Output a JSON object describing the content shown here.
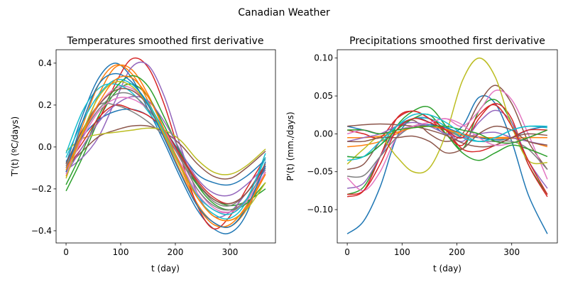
{
  "figure_title": "Canadian Weather",
  "chart_data": [
    {
      "type": "line",
      "title": "Temperatures smoothed first derivative",
      "xlabel": "t (day)",
      "ylabel": "T'(t) (ºC/days)",
      "xlim": [
        -18.25,
        383.25
      ],
      "ylim": [
        -0.458,
        0.464
      ],
      "xticks": [
        0,
        100,
        200,
        300
      ],
      "xtick_labels": [
        "0",
        "100",
        "200",
        "300"
      ],
      "yticks": [
        0.4,
        0.2,
        0.0,
        -0.2,
        -0.4
      ],
      "ytick_labels": [
        "0.4",
        "0.2",
        "0.0",
        "−0.2",
        "−0.4"
      ],
      "grid": false,
      "x": [
        0,
        30,
        60,
        90,
        120,
        150,
        180,
        210,
        240,
        270,
        300,
        330,
        365
      ],
      "series": [
        {
          "color": "#1f77b4",
          "values": [
            -0.08,
            0.15,
            0.33,
            0.4,
            0.33,
            0.18,
            0.02,
            -0.15,
            -0.3,
            -0.39,
            -0.41,
            -0.32,
            -0.07
          ]
        },
        {
          "color": "#ff7f0e",
          "values": [
            -0.14,
            0.06,
            0.25,
            0.38,
            0.37,
            0.25,
            0.08,
            -0.1,
            -0.27,
            -0.36,
            -0.38,
            -0.3,
            -0.12
          ]
        },
        {
          "color": "#2ca02c",
          "values": [
            -0.21,
            -0.05,
            0.13,
            0.26,
            0.3,
            0.24,
            0.1,
            -0.06,
            -0.18,
            -0.25,
            -0.28,
            -0.26,
            -0.2
          ]
        },
        {
          "color": "#d62728",
          "values": [
            -0.1,
            0.0,
            0.13,
            0.3,
            0.42,
            0.38,
            0.2,
            -0.05,
            -0.28,
            -0.39,
            -0.33,
            -0.2,
            -0.05
          ]
        },
        {
          "color": "#9467bd",
          "values": [
            -0.11,
            -0.05,
            0.05,
            0.22,
            0.38,
            0.39,
            0.24,
            0.0,
            -0.22,
            -0.33,
            -0.31,
            -0.22,
            -0.11
          ]
        },
        {
          "color": "#8c564b",
          "values": [
            -0.1,
            -0.02,
            0.05,
            0.08,
            0.1,
            0.1,
            0.07,
            0.01,
            -0.08,
            -0.14,
            -0.15,
            -0.1,
            -0.02
          ]
        },
        {
          "color": "#e377c2",
          "values": [
            -0.12,
            0.05,
            0.2,
            0.28,
            0.28,
            0.2,
            0.06,
            -0.08,
            -0.22,
            -0.3,
            -0.31,
            -0.25,
            -0.1
          ]
        },
        {
          "color": "#7f7f7f",
          "values": [
            -0.1,
            0.08,
            0.2,
            0.2,
            0.17,
            0.12,
            0.05,
            -0.05,
            -0.17,
            -0.26,
            -0.28,
            -0.22,
            -0.09
          ]
        },
        {
          "color": "#bcbd22",
          "values": [
            -0.02,
            0.04,
            0.06,
            0.07,
            0.08,
            0.09,
            0.08,
            0.03,
            -0.06,
            -0.12,
            -0.13,
            -0.09,
            -0.01
          ]
        },
        {
          "color": "#17becf",
          "values": [
            -0.03,
            0.17,
            0.28,
            0.3,
            0.26,
            0.17,
            0.05,
            -0.1,
            -0.24,
            -0.32,
            -0.34,
            -0.26,
            -0.03
          ]
        },
        {
          "color": "#1f77b4",
          "values": [
            -0.07,
            0.05,
            0.13,
            0.17,
            0.18,
            0.15,
            0.08,
            -0.03,
            -0.13,
            -0.17,
            -0.18,
            -0.14,
            -0.06
          ]
        },
        {
          "color": "#ff7f0e",
          "values": [
            -0.12,
            0.1,
            0.3,
            0.39,
            0.35,
            0.22,
            0.05,
            -0.12,
            -0.28,
            -0.37,
            -0.37,
            -0.28,
            -0.12
          ]
        },
        {
          "color": "#2ca02c",
          "values": [
            -0.18,
            -0.02,
            0.15,
            0.28,
            0.34,
            0.29,
            0.14,
            -0.03,
            -0.18,
            -0.27,
            -0.3,
            -0.27,
            -0.17
          ]
        },
        {
          "color": "#d62728",
          "values": [
            -0.09,
            0.02,
            0.14,
            0.2,
            0.18,
            0.15,
            0.08,
            -0.04,
            -0.16,
            -0.24,
            -0.27,
            -0.22,
            -0.09
          ]
        },
        {
          "color": "#9467bd",
          "values": [
            -0.13,
            0.0,
            0.12,
            0.2,
            0.24,
            0.22,
            0.12,
            -0.02,
            -0.15,
            -0.22,
            -0.23,
            -0.18,
            -0.09
          ]
        },
        {
          "color": "#8c564b",
          "values": [
            -0.08,
            0.08,
            0.2,
            0.27,
            0.27,
            0.2,
            0.08,
            -0.05,
            -0.17,
            -0.25,
            -0.27,
            -0.22,
            -0.08
          ]
        },
        {
          "color": "#e377c2",
          "values": [
            -0.13,
            0.04,
            0.17,
            0.23,
            0.23,
            0.18,
            0.08,
            -0.06,
            -0.2,
            -0.29,
            -0.31,
            -0.26,
            -0.12
          ]
        },
        {
          "color": "#7f7f7f",
          "values": [
            -0.09,
            0.06,
            0.18,
            0.25,
            0.25,
            0.18,
            0.07,
            -0.06,
            -0.2,
            -0.28,
            -0.3,
            -0.25,
            -0.1
          ]
        },
        {
          "color": "#bcbd22",
          "values": [
            -0.15,
            0.07,
            0.24,
            0.31,
            0.29,
            0.2,
            0.06,
            -0.1,
            -0.24,
            -0.33,
            -0.35,
            -0.3,
            -0.17
          ]
        },
        {
          "color": "#17becf",
          "values": [
            -0.05,
            0.12,
            0.25,
            0.32,
            0.3,
            0.21,
            0.07,
            -0.09,
            -0.23,
            -0.3,
            -0.32,
            -0.25,
            -0.05
          ]
        },
        {
          "color": "#1f77b4",
          "values": [
            -0.12,
            0.12,
            0.3,
            0.35,
            0.31,
            0.2,
            0.04,
            -0.13,
            -0.28,
            -0.36,
            -0.38,
            -0.29,
            -0.09
          ]
        },
        {
          "color": "#ff7f0e",
          "values": [
            -0.11,
            0.06,
            0.21,
            0.32,
            0.33,
            0.24,
            0.08,
            -0.09,
            -0.24,
            -0.33,
            -0.35,
            -0.29,
            -0.13
          ]
        }
      ]
    },
    {
      "type": "line",
      "title": "Precipitations smoothed first derivative",
      "xlabel": "t (day)",
      "ylabel": "P'(t) (mm./days)",
      "xlim": [
        -18.25,
        383.25
      ],
      "ylim": [
        -0.144,
        0.111
      ],
      "xticks": [
        0,
        100,
        200,
        300
      ],
      "xtick_labels": [
        "0",
        "100",
        "200",
        "300"
      ],
      "yticks": [
        0.1,
        0.05,
        0.0,
        -0.05,
        -0.1
      ],
      "ytick_labels": [
        "0.10",
        "0.05",
        "0.00",
        "−0.05",
        "−0.10"
      ],
      "grid": false,
      "x": [
        0,
        30,
        60,
        90,
        120,
        150,
        180,
        210,
        240,
        270,
        300,
        330,
        365
      ],
      "series": [
        {
          "color": "#1f77b4",
          "values": [
            -0.132,
            -0.115,
            -0.07,
            -0.005,
            0.02,
            0.015,
            0.0,
            0.01,
            0.048,
            0.04,
            -0.01,
            -0.08,
            -0.132
          ]
        },
        {
          "color": "#ff7f0e",
          "values": [
            -0.017,
            -0.015,
            -0.01,
            0.0,
            0.01,
            0.01,
            0.005,
            -0.002,
            -0.005,
            -0.005,
            -0.005,
            -0.01,
            -0.017
          ]
        },
        {
          "color": "#2ca02c",
          "values": [
            -0.08,
            -0.07,
            -0.03,
            0.01,
            0.03,
            0.035,
            0.01,
            -0.02,
            0.03,
            0.045,
            0.015,
            -0.04,
            -0.08
          ]
        },
        {
          "color": "#d62728",
          "values": [
            -0.083,
            -0.075,
            -0.03,
            0.02,
            0.03,
            0.02,
            0.0,
            -0.015,
            0.02,
            0.04,
            0.02,
            -0.04,
            -0.083
          ]
        },
        {
          "color": "#9467bd",
          "values": [
            -0.072,
            -0.065,
            -0.03,
            0.005,
            0.02,
            0.02,
            0.005,
            -0.01,
            0.015,
            0.031,
            0.015,
            -0.035,
            -0.072
          ]
        },
        {
          "color": "#8c564b",
          "values": [
            -0.047,
            -0.04,
            -0.01,
            0.01,
            0.018,
            0.0,
            -0.01,
            0.0,
            0.04,
            0.064,
            0.04,
            -0.01,
            -0.047
          ]
        },
        {
          "color": "#e377c2",
          "values": [
            -0.058,
            -0.075,
            -0.05,
            -0.005,
            0.01,
            0.015,
            0.02,
            0.01,
            0.03,
            0.057,
            0.045,
            0.0,
            -0.06
          ]
        },
        {
          "color": "#7f7f7f",
          "values": [
            -0.056,
            -0.055,
            -0.03,
            -0.005,
            0.01,
            0.01,
            0.005,
            -0.005,
            -0.01,
            -0.01,
            -0.01,
            -0.02,
            -0.047
          ]
        },
        {
          "color": "#bcbd22",
          "values": [
            -0.04,
            -0.02,
            -0.005,
            -0.03,
            -0.05,
            -0.045,
            0.0,
            0.07,
            0.1,
            0.075,
            0.01,
            -0.035,
            -0.038
          ]
        },
        {
          "color": "#17becf",
          "values": [
            -0.03,
            -0.03,
            -0.015,
            0.01,
            0.02,
            0.02,
            0.01,
            -0.005,
            -0.01,
            -0.005,
            0.005,
            0.01,
            0.008
          ]
        },
        {
          "color": "#1f77b4",
          "values": [
            0.01,
            0.005,
            0.0,
            0.005,
            0.01,
            0.012,
            0.008,
            0.0,
            -0.005,
            -0.008,
            -0.005,
            0.005,
            0.01
          ]
        },
        {
          "color": "#ff7f0e",
          "values": [
            -0.005,
            -0.005,
            -0.003,
            0.002,
            0.008,
            0.01,
            0.006,
            0.0,
            -0.004,
            -0.006,
            -0.006,
            -0.005,
            -0.005
          ]
        },
        {
          "color": "#2ca02c",
          "values": [
            -0.03,
            -0.03,
            -0.015,
            0.005,
            0.02,
            0.025,
            0.0,
            -0.025,
            -0.035,
            -0.025,
            -0.015,
            -0.02,
            -0.03
          ]
        },
        {
          "color": "#d62728",
          "values": [
            0.005,
            0.0,
            -0.005,
            0.02,
            0.03,
            0.02,
            0.005,
            -0.02,
            -0.023,
            -0.015,
            -0.005,
            0.005,
            0.005
          ]
        },
        {
          "color": "#9467bd",
          "values": [
            -0.01,
            -0.005,
            0.0,
            0.01,
            0.015,
            0.01,
            0.0,
            -0.005,
            0.0,
            0.002,
            -0.005,
            -0.01,
            -0.015
          ]
        },
        {
          "color": "#8c564b",
          "values": [
            0.01,
            0.012,
            0.013,
            0.012,
            0.01,
            0.005,
            -0.002,
            -0.012,
            -0.017,
            -0.015,
            -0.005,
            0.0,
            -0.002
          ]
        },
        {
          "color": "#e377c2",
          "values": [
            0.0,
            0.005,
            0.0,
            0.005,
            0.01,
            0.015,
            0.02,
            0.012,
            -0.005,
            -0.015,
            -0.012,
            -0.005,
            0.005
          ]
        },
        {
          "color": "#8c564b",
          "values": [
            -0.01,
            -0.01,
            -0.005,
            -0.005,
            -0.003,
            -0.01,
            -0.025,
            -0.02,
            0.0,
            0.01,
            0.005,
            -0.01,
            -0.015
          ]
        },
        {
          "color": "#d62728",
          "values": [
            -0.08,
            -0.075,
            -0.04,
            0.005,
            0.02,
            0.015,
            0.005,
            -0.005,
            0.025,
            0.038,
            0.01,
            -0.035,
            -0.08
          ]
        },
        {
          "color": "#2ca02c",
          "values": [
            0.005,
            0.005,
            0.0,
            0.005,
            0.008,
            0.01,
            0.01,
            0.005,
            0.0,
            -0.01,
            -0.012,
            -0.005,
            0.005
          ]
        },
        {
          "color": "#17becf",
          "values": [
            -0.035,
            -0.03,
            -0.01,
            0.01,
            0.025,
            0.025,
            0.015,
            0.0,
            -0.01,
            -0.005,
            0.005,
            0.01,
            0.01
          ]
        }
      ]
    }
  ]
}
